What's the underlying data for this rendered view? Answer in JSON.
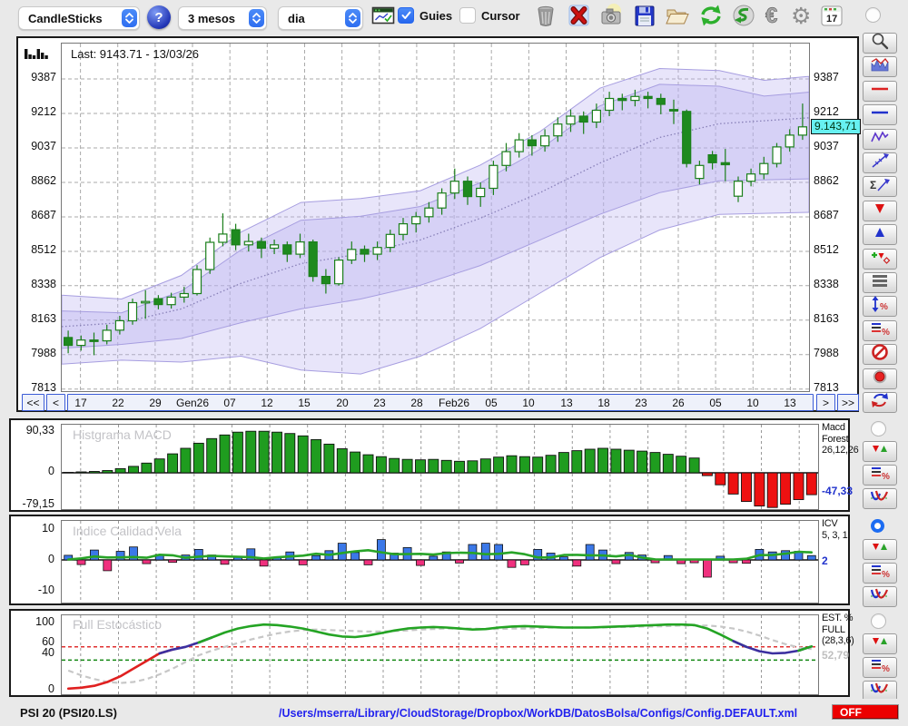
{
  "toolbar": {
    "chart_type": "CandleSticks",
    "period": "3 mesos",
    "interval": "dia",
    "guies_label": "Guies",
    "cursor_label": "Cursor",
    "calendar_day": "17",
    "icons": [
      "trash",
      "delete",
      "camera",
      "save",
      "folder",
      "refresh",
      "undo",
      "euro",
      "gear",
      "calendar"
    ]
  },
  "main_chart": {
    "last_label": "Last: 9143.71 - 13/03/26",
    "price_tag": "9.143,71",
    "nav": {
      "first": "<<",
      "prev": "<",
      "next": ">",
      "last": ">>"
    }
  },
  "macd": {
    "title": "Histgrama MACD",
    "y_top": "90,33",
    "y_zero": "0",
    "y_bottom": "-79,15",
    "label_lines": [
      "Macd",
      "Forest",
      "26,12,26"
    ],
    "value": "-47,33",
    "radio_selected": false
  },
  "icv": {
    "title": "Indice Calidad Vela",
    "y_top": "10",
    "y_zero": "0",
    "y_bottom": "-10",
    "label_lines": [
      "ICV",
      "5, 3, 1"
    ],
    "value": "2",
    "radio_selected": true
  },
  "stoch": {
    "title": "Full Estocástico",
    "y_labels": [
      "100",
      "60",
      "40",
      "0"
    ],
    "label_lines": [
      "EST. %",
      "FULL",
      "(28,3,6)"
    ],
    "value": "52,79",
    "radio_selected": false
  },
  "statusbar": {
    "symbol": "PSI 20 (PSI20.LS)",
    "path": "/Users/mserra/Library/CloudStorage/Dropbox/WorkDB/DatosBolsa/Configs/Config.DEFAULT.xml",
    "off": "OFF"
  },
  "sidebar": {
    "main_tools": [
      "zoom",
      "indicator-window",
      "red-hline",
      "blue-hline",
      "zigzag",
      "trendline",
      "sum-trendline",
      "arrow-down",
      "arrow-up",
      "add-signal",
      "list-rows",
      "range-percent",
      "levels-percent",
      "disable",
      "record",
      "sync"
    ],
    "panel_tools": [
      "arrows-red-green",
      "levels-percent",
      "curves"
    ]
  },
  "chart_data": [
    {
      "type": "candlestick",
      "name": "price",
      "title": "PSI 20 daily candles with envelope bands",
      "last": 9143.71,
      "last_date": "13/03/26",
      "ylim": [
        7794,
        9566
      ],
      "y_ticks": [
        9387,
        9212,
        9037,
        8862,
        8687,
        8512,
        8338,
        8163,
        7988,
        7813
      ],
      "x_labels": [
        "17",
        "22",
        "29",
        "Gen26",
        "07",
        "12",
        "15",
        "20",
        "23",
        "28",
        "Feb26",
        "05",
        "10",
        "13",
        "18",
        "23",
        "26",
        "05",
        "10",
        "13"
      ],
      "ohlc": [
        [
          8075,
          8110,
          7995,
          8035
        ],
        [
          8035,
          8085,
          8008,
          8062
        ],
        [
          8062,
          8100,
          7985,
          8058
        ],
        [
          8058,
          8140,
          8040,
          8112
        ],
        [
          8112,
          8185,
          8090,
          8160
        ],
        [
          8160,
          8272,
          8140,
          8252
        ],
        [
          8252,
          8315,
          8170,
          8258
        ],
        [
          8272,
          8290,
          8218,
          8242
        ],
        [
          8242,
          8302,
          8222,
          8280
        ],
        [
          8280,
          8332,
          8252,
          8298
        ],
        [
          8298,
          8442,
          8288,
          8420
        ],
        [
          8420,
          8582,
          8398,
          8558
        ],
        [
          8558,
          8705,
          8538,
          8600
        ],
        [
          8622,
          8652,
          8518,
          8545
        ],
        [
          8545,
          8602,
          8512,
          8562
        ],
        [
          8562,
          8582,
          8478,
          8528
        ],
        [
          8528,
          8572,
          8498,
          8545
        ],
        [
          8545,
          8562,
          8458,
          8498
        ],
        [
          8498,
          8602,
          8478,
          8560
        ],
        [
          8560,
          8572,
          8358,
          8385
        ],
        [
          8385,
          8422,
          8298,
          8348
        ],
        [
          8348,
          8482,
          8338,
          8468
        ],
        [
          8468,
          8562,
          8448,
          8522
        ],
        [
          8522,
          8542,
          8458,
          8498
        ],
        [
          8498,
          8562,
          8468,
          8532
        ],
        [
          8532,
          8622,
          8508,
          8598
        ],
        [
          8598,
          8682,
          8568,
          8652
        ],
        [
          8652,
          8712,
          8608,
          8688
        ],
        [
          8688,
          8762,
          8658,
          8732
        ],
        [
          8732,
          8832,
          8698,
          8808
        ],
        [
          8808,
          8932,
          8778,
          8868
        ],
        [
          8868,
          8892,
          8748,
          8790
        ],
        [
          8790,
          8862,
          8738,
          8832
        ],
        [
          8832,
          8972,
          8798,
          8948
        ],
        [
          8948,
          9062,
          8918,
          9018
        ],
        [
          9018,
          9112,
          8988,
          9078
        ],
        [
          9078,
          9102,
          8998,
          9048
        ],
        [
          9048,
          9132,
          9018,
          9098
        ],
        [
          9098,
          9192,
          9068,
          9158
        ],
        [
          9158,
          9232,
          9118,
          9198
        ],
        [
          9198,
          9222,
          9108,
          9168
        ],
        [
          9168,
          9262,
          9138,
          9228
        ],
        [
          9228,
          9322,
          9198,
          9288
        ],
        [
          9288,
          9312,
          9228,
          9278
        ],
        [
          9278,
          9332,
          9248,
          9298
        ],
        [
          9298,
          9322,
          9238,
          9288
        ],
        [
          9288,
          9312,
          9208,
          9258
        ],
        [
          9232,
          9282,
          9158,
          9228
        ],
        [
          9222,
          9232,
          8938,
          8958
        ],
        [
          8882,
          8972,
          8852,
          8948
        ],
        [
          9002,
          9022,
          8928,
          8962
        ],
        [
          8962,
          9032,
          8868,
          8952
        ],
        [
          8792,
          8892,
          8762,
          8868
        ],
        [
          8868,
          8932,
          8842,
          8905
        ],
        [
          8905,
          8992,
          8878,
          8958
        ],
        [
          8958,
          9062,
          8938,
          9042
        ],
        [
          9042,
          9132,
          9018,
          9102
        ],
        [
          9102,
          9262,
          9078,
          9144
        ]
      ],
      "bands": {
        "outer_upper": [
          [
            0,
            8290
          ],
          [
            0.08,
            8270
          ],
          [
            0.16,
            8390
          ],
          [
            0.24,
            8610
          ],
          [
            0.32,
            8760
          ],
          [
            0.4,
            8780
          ],
          [
            0.48,
            8820
          ],
          [
            0.56,
            8950
          ],
          [
            0.64,
            9120
          ],
          [
            0.72,
            9340
          ],
          [
            0.8,
            9440
          ],
          [
            0.88,
            9430
          ],
          [
            0.94,
            9380
          ],
          [
            1,
            9400
          ]
        ],
        "inner_upper": [
          [
            0,
            8210
          ],
          [
            0.08,
            8200
          ],
          [
            0.16,
            8310
          ],
          [
            0.24,
            8520
          ],
          [
            0.32,
            8670
          ],
          [
            0.4,
            8690
          ],
          [
            0.48,
            8740
          ],
          [
            0.56,
            8860
          ],
          [
            0.64,
            9030
          ],
          [
            0.72,
            9250
          ],
          [
            0.8,
            9360
          ],
          [
            0.88,
            9350
          ],
          [
            0.94,
            9300
          ],
          [
            1,
            9320
          ]
        ],
        "mid": [
          [
            0,
            8130
          ],
          [
            0.08,
            8150
          ],
          [
            0.16,
            8220
          ],
          [
            0.24,
            8350
          ],
          [
            0.32,
            8450
          ],
          [
            0.4,
            8500
          ],
          [
            0.48,
            8570
          ],
          [
            0.56,
            8680
          ],
          [
            0.64,
            8810
          ],
          [
            0.72,
            8960
          ],
          [
            0.8,
            9090
          ],
          [
            0.88,
            9160
          ],
          [
            1,
            9190
          ]
        ],
        "inner_lower": [
          [
            0,
            8020
          ],
          [
            0.08,
            8040
          ],
          [
            0.16,
            8070
          ],
          [
            0.24,
            8150
          ],
          [
            0.32,
            8220
          ],
          [
            0.4,
            8270
          ],
          [
            0.48,
            8340
          ],
          [
            0.56,
            8440
          ],
          [
            0.64,
            8570
          ],
          [
            0.72,
            8700
          ],
          [
            0.8,
            8810
          ],
          [
            0.88,
            8870
          ],
          [
            1,
            8880
          ]
        ],
        "outer_lower": [
          [
            0,
            7940
          ],
          [
            0.08,
            7960
          ],
          [
            0.16,
            7950
          ],
          [
            0.24,
            7980
          ],
          [
            0.32,
            7910
          ],
          [
            0.4,
            7890
          ],
          [
            0.48,
            7980
          ],
          [
            0.56,
            8120
          ],
          [
            0.64,
            8300
          ],
          [
            0.72,
            8480
          ],
          [
            0.8,
            8620
          ],
          [
            0.88,
            8700
          ],
          [
            1,
            8710
          ]
        ]
      }
    },
    {
      "type": "bar",
      "name": "macd_histogram",
      "title": "Histgrama MACD",
      "params": [
        26,
        12,
        26
      ],
      "ylim": [
        -79.15,
        90.33
      ],
      "y_ticks": [
        90.33,
        0,
        -79.15
      ],
      "last": -47.33,
      "values": [
        1,
        2,
        3,
        5,
        9,
        14,
        21,
        30,
        41,
        53,
        64,
        74,
        82,
        88,
        90,
        90,
        88,
        85,
        80,
        72,
        62,
        52,
        45,
        39,
        35,
        31,
        29,
        28,
        29,
        27,
        25,
        26,
        30,
        34,
        37,
        35,
        34,
        38,
        44,
        48,
        51,
        53,
        51,
        49,
        47,
        44,
        40,
        36,
        32,
        -6,
        -26,
        -46,
        -62,
        -72,
        -75,
        -68,
        -58,
        -47.33
      ],
      "colors": {
        "positive": "#1f9c1f",
        "negative": "#ee1111"
      }
    },
    {
      "type": "bar+line",
      "name": "indice_calidad_vela",
      "title": "Indice Calidad Vela",
      "params": [
        5,
        3,
        1
      ],
      "ylim": [
        -10,
        10
      ],
      "y_ticks": [
        10,
        0,
        -10
      ],
      "last": 2,
      "values": [
        1.5,
        -1.5,
        3.2,
        -3.5,
        2.8,
        4.2,
        -1.2,
        1.8,
        -0.8,
        1.6,
        3.4,
        1.6,
        -1.4,
        1.2,
        3.6,
        -2.0,
        0.8,
        2.6,
        -1.6,
        1.4,
        3.0,
        5.4,
        2.4,
        -1.6,
        6.6,
        2.2,
        4.0,
        -1.8,
        1.2,
        2.6,
        -1.0,
        5.0,
        5.4,
        5.0,
        -2.4,
        -1.6,
        3.4,
        2.2,
        1.0,
        -2.0,
        5.0,
        3.2,
        -1.2,
        2.4,
        1.6,
        -0.9,
        1.4,
        -1.2,
        -0.9,
        -5.6,
        1.2,
        -0.9,
        -1.1,
        3.4,
        2.6,
        3.0,
        2.8,
        1.4
      ],
      "colors": {
        "positive": "#3b78e8",
        "negative": "#f0307e",
        "line": "#28a428"
      }
    },
    {
      "type": "line",
      "name": "full_stochastic",
      "title": "Full Estocástico",
      "params": [
        28,
        3,
        6
      ],
      "ylim": [
        0,
        100
      ],
      "y_ticks": [
        100,
        60,
        40,
        0
      ],
      "last": 52.79,
      "k": [
        3,
        4,
        6,
        10,
        16,
        24,
        32,
        40,
        47,
        52,
        60,
        70,
        80,
        88,
        93,
        96,
        95,
        92,
        88,
        82,
        76,
        72,
        71,
        74,
        79,
        84,
        88,
        90,
        91,
        90,
        88,
        86,
        87,
        90,
        92,
        93,
        92,
        91,
        90,
        90,
        90,
        91,
        92,
        93,
        94,
        95,
        96,
        96,
        95,
        88,
        76,
        63,
        52,
        44,
        40,
        41,
        45,
        52.79
      ],
      "d": [
        22,
        17,
        13,
        10,
        9,
        10,
        13,
        18,
        24,
        31,
        38,
        45,
        52,
        59,
        66,
        72,
        78,
        82,
        85,
        86,
        85,
        84,
        83,
        82,
        82,
        83,
        84,
        86,
        87,
        88,
        88,
        88,
        87,
        87,
        88,
        88,
        89,
        90,
        90,
        90,
        90,
        90,
        91,
        91,
        92,
        92,
        93,
        94,
        94,
        94,
        92,
        88,
        82,
        74,
        65,
        57,
        51,
        48
      ],
      "segments": [
        {
          "from": 0,
          "to": 7,
          "color": "#e02020"
        },
        {
          "from": 7,
          "to": 10,
          "color": "#3c2fa0"
        },
        {
          "from": 10,
          "to": 51,
          "color": "#24a424"
        },
        {
          "from": 51,
          "to": 56,
          "color": "#3c2fa0"
        },
        {
          "from": 56,
          "to": 57,
          "color": "#24a424"
        }
      ],
      "thresholds": {
        "upper": 52,
        "lower": 33
      },
      "threshold_colors": {
        "upper": "#e03030",
        "lower": "#128812"
      }
    }
  ]
}
